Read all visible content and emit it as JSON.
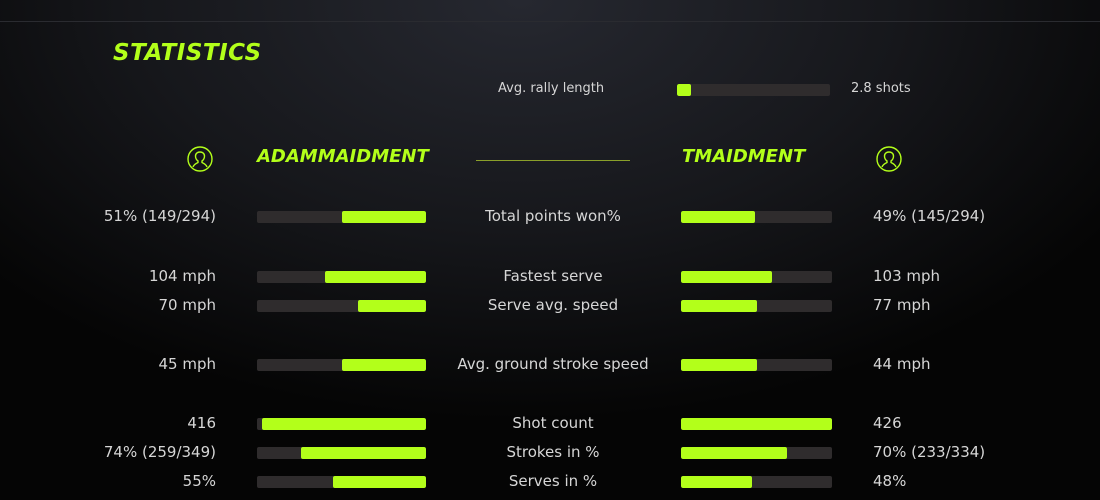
{
  "colors": {
    "accent": "#b3ff1a",
    "bar_track": "#2f2c2d"
  },
  "title": "STATISTICS",
  "rally": {
    "label": "Avg. rally length",
    "value": "2.8 shots",
    "fill": 0.09
  },
  "players": [
    {
      "name": "ADAMMAIDMENT",
      "icon": "user-circle-icon"
    },
    {
      "name": "TMAIDMENT",
      "icon": "user-circle-icon"
    }
  ],
  "stats": [
    {
      "label": "Total points won%",
      "left": "51% (149/294)",
      "right": "49% (145/294)",
      "left_fill": 0.5,
      "right_fill": 0.49
    },
    {
      "label": "Fastest serve",
      "left": "104 mph",
      "right": "103 mph",
      "left_fill": 0.6,
      "right_fill": 0.6
    },
    {
      "label": "Serve avg. speed",
      "left": "70 mph",
      "right": "77 mph",
      "left_fill": 0.4,
      "right_fill": 0.5
    },
    {
      "label": "Avg. ground stroke speed",
      "left": "45 mph",
      "right": "44 mph",
      "left_fill": 0.5,
      "right_fill": 0.5
    },
    {
      "label": "Shot count",
      "left": "416",
      "right": "426",
      "left_fill": 0.97,
      "right_fill": 1.0
    },
    {
      "label": "Strokes in %",
      "left": "74% (259/349)",
      "right": "70% (233/334)",
      "left_fill": 0.74,
      "right_fill": 0.7
    },
    {
      "label": "Serves in %",
      "left": "55%",
      "right": "48%",
      "left_fill": 0.55,
      "right_fill": 0.47
    }
  ]
}
